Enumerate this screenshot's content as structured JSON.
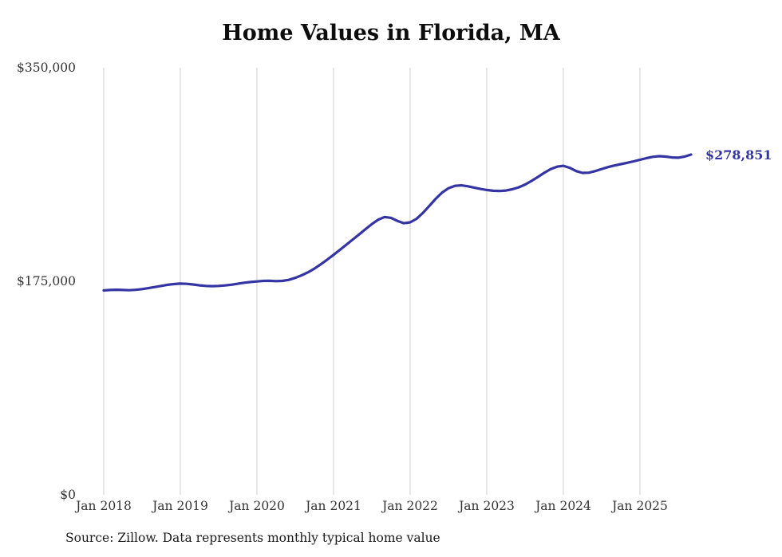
{
  "chart_data": {
    "type": "line",
    "title": "Home Values in Florida, MA",
    "source": "Source: Zillow. Data represents monthly typical home value",
    "end_label": "$278,851",
    "line_color": "#3434a4",
    "grid": "vertical-only",
    "legend": "none",
    "ylim": [
      0,
      350000
    ],
    "y_ticks": [
      {
        "value": 0,
        "label": "$0"
      },
      {
        "value": 175000,
        "label": "$175,000"
      },
      {
        "value": 350000,
        "label": "$350,000"
      }
    ],
    "x_ticks": [
      {
        "month": "2018-01",
        "label": "Jan 2018"
      },
      {
        "month": "2019-01",
        "label": "Jan 2019"
      },
      {
        "month": "2020-01",
        "label": "Jan 2020"
      },
      {
        "month": "2021-01",
        "label": "Jan 2021"
      },
      {
        "month": "2022-01",
        "label": "Jan 2022"
      },
      {
        "month": "2023-01",
        "label": "Jan 2023"
      },
      {
        "month": "2024-01",
        "label": "Jan 2024"
      },
      {
        "month": "2025-01",
        "label": "Jan 2025"
      }
    ],
    "x": [
      "2018-01",
      "2018-02",
      "2018-03",
      "2018-04",
      "2018-05",
      "2018-06",
      "2018-07",
      "2018-08",
      "2018-09",
      "2018-10",
      "2018-11",
      "2018-12",
      "2019-01",
      "2019-02",
      "2019-03",
      "2019-04",
      "2019-05",
      "2019-06",
      "2019-07",
      "2019-08",
      "2019-09",
      "2019-10",
      "2019-11",
      "2019-12",
      "2020-01",
      "2020-02",
      "2020-03",
      "2020-04",
      "2020-05",
      "2020-06",
      "2020-07",
      "2020-08",
      "2020-09",
      "2020-10",
      "2020-11",
      "2020-12",
      "2021-01",
      "2021-02",
      "2021-03",
      "2021-04",
      "2021-05",
      "2021-06",
      "2021-07",
      "2021-08",
      "2021-09",
      "2021-10",
      "2021-11",
      "2021-12",
      "2022-01",
      "2022-02",
      "2022-03",
      "2022-04",
      "2022-05",
      "2022-06",
      "2022-07",
      "2022-08",
      "2022-09",
      "2022-10",
      "2022-11",
      "2022-12",
      "2023-01",
      "2023-02",
      "2023-03",
      "2023-04",
      "2023-05",
      "2023-06",
      "2023-07",
      "2023-08",
      "2023-09",
      "2023-10",
      "2023-11",
      "2023-12",
      "2024-01",
      "2024-02",
      "2024-03",
      "2024-04",
      "2024-05",
      "2024-06",
      "2024-07",
      "2024-08",
      "2024-09",
      "2024-10",
      "2024-11",
      "2024-12",
      "2025-01",
      "2025-02",
      "2025-03",
      "2025-04",
      "2025-05",
      "2025-06",
      "2025-07",
      "2025-08",
      "2025-09"
    ],
    "values": [
      167500,
      167900,
      168100,
      167900,
      167700,
      168000,
      168600,
      169400,
      170300,
      171200,
      172100,
      172700,
      173100,
      172900,
      172400,
      171700,
      171200,
      171000,
      171200,
      171600,
      172200,
      173000,
      173800,
      174400,
      174900,
      175300,
      175400,
      175100,
      175300,
      176200,
      177800,
      179900,
      182400,
      185400,
      188900,
      192700,
      196700,
      200800,
      205000,
      209200,
      213400,
      217700,
      221900,
      225500,
      227700,
      227000,
      224500,
      222600,
      223300,
      226200,
      231000,
      236800,
      242600,
      247700,
      251300,
      253200,
      253600,
      252900,
      251800,
      250700,
      249800,
      249200,
      249000,
      249400,
      250400,
      252000,
      254300,
      257200,
      260500,
      263900,
      266900,
      268900,
      269600,
      268000,
      265300,
      263800,
      264000,
      265300,
      267000,
      268600,
      269900,
      271000,
      272100,
      273300,
      274600,
      275900,
      277000,
      277500,
      277200,
      276500,
      276300,
      277200,
      278851
    ]
  }
}
